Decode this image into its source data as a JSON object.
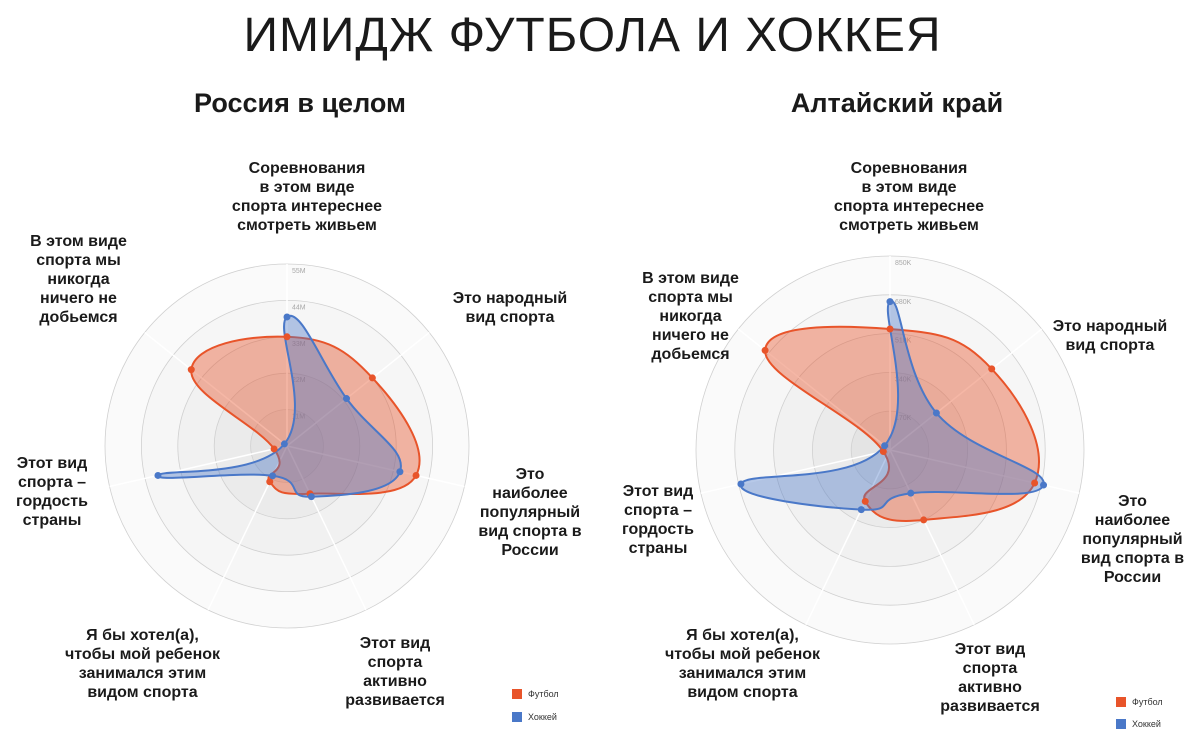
{
  "title": "ИМИДЖ ФУТБОЛА И ХОККЕЯ",
  "colors": {
    "football": "#e8542a",
    "hockey": "#4a78c8"
  },
  "legend": {
    "football": "Футбол",
    "hockey": "Хоккей"
  },
  "axes_labels": [
    [
      "Соревнования",
      "в этом виде",
      "спорта интереснее",
      "смотреть живьем"
    ],
    [
      "Это народный",
      "вид спорта"
    ],
    [
      "Это",
      "наиболее",
      "популярный",
      "вид спорта в",
      "России"
    ],
    [
      "Этот вид",
      "спорта",
      "активно",
      "развивается"
    ],
    [
      "Я бы хотел(а),",
      "чтобы мой ребенок",
      "занимался этим",
      "видом спорта"
    ],
    [
      "Этот вид",
      "спорта –",
      "гордость",
      "страны"
    ],
    [
      "В этом виде",
      "спорта мы",
      "никогда",
      "ничего не",
      "добьемся"
    ]
  ],
  "chart_data": [
    {
      "type": "radar",
      "title": "Россия в целом",
      "axes": [
        "Соревнования в этом виде спорта интереснее смотреть живьем",
        "Это народный вид спорта",
        "Это наиболее популярный вид спорта в России",
        "Этот вид спорта активно развивается",
        "Я бы хотел(а), чтобы мой ребенок занимался этим видом спорта",
        "Этот вид спорта – гордость страны",
        "В этом виде спорта мы никогда ничего не добьемся"
      ],
      "tick_labels": [
        "11M",
        "22M",
        "33M",
        "44M",
        "55M"
      ],
      "rmax": 55,
      "series": [
        {
          "name": "Футбол",
          "values": [
            33,
            33,
            40,
            16,
            12,
            4,
            37
          ]
        },
        {
          "name": "Хоккей",
          "values": [
            39,
            23,
            35,
            17,
            10,
            40,
            1
          ]
        }
      ]
    },
    {
      "type": "radar",
      "title": "Алтайский край",
      "axes": [
        "Соревнования в этом виде спорта интереснее смотреть живьем",
        "Это народный вид спорта",
        "Это наиболее популярный вид спорта в России",
        "Этот вид спорта активно развивается",
        "Я бы хотел(а), чтобы мой ребенок занимался этим видом спорта",
        "Этот вид спорта – гордость страны",
        "В этом виде спорта мы никогда ничего не добьемся"
      ],
      "tick_labels": [
        "170K",
        "340K",
        "510K",
        "680K",
        "850K"
      ],
      "rmax": 850,
      "series": [
        {
          "name": "Футбол",
          "values": [
            530,
            570,
            650,
            340,
            250,
            30,
            700
          ]
        },
        {
          "name": "Хоккей",
          "values": [
            650,
            260,
            690,
            210,
            290,
            670,
            30
          ]
        }
      ]
    }
  ]
}
